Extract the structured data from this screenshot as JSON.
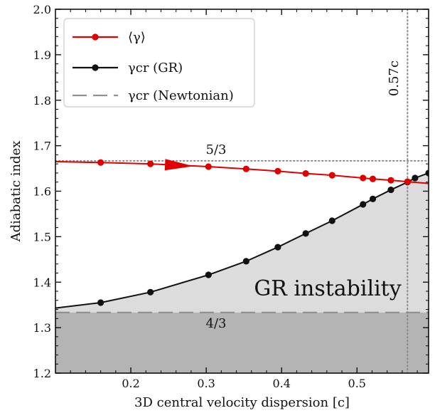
{
  "chart_data": {
    "type": "line",
    "xlabel": "3D central velocity dispersion [c]",
    "ylabel": "Adiabatic index",
    "xlim": [
      0.1,
      0.595
    ],
    "ylim": [
      1.2,
      2.0
    ],
    "xticks": [
      "0.2",
      "0.3",
      "0.4",
      "0.5"
    ],
    "yticks": [
      "1.2",
      "1.3",
      "1.4",
      "1.5",
      "1.6",
      "1.7",
      "1.8",
      "1.9",
      "2.0"
    ],
    "legend_position": "top-left",
    "series": [
      {
        "name": "⟨γ⟩",
        "color": "#e00000",
        "marker": "circle",
        "x": [
          0.1,
          0.16,
          0.226,
          0.303,
          0.353,
          0.395,
          0.432,
          0.467,
          0.508,
          0.521,
          0.545,
          0.567,
          0.595
        ],
        "y": [
          1.665,
          1.663,
          1.66,
          1.654,
          1.649,
          1.644,
          1.639,
          1.635,
          1.629,
          1.627,
          1.624,
          1.621,
          1.617
        ],
        "marker_x": [
          0.16,
          0.226,
          0.303,
          0.353,
          0.395,
          0.432,
          0.467,
          0.508,
          0.521,
          0.545,
          0.567
        ]
      },
      {
        "name": "γ_cr (GR)",
        "color": "#111111",
        "marker": "circle",
        "x": [
          0.1,
          0.16,
          0.226,
          0.303,
          0.353,
          0.395,
          0.432,
          0.467,
          0.508,
          0.521,
          0.545,
          0.567,
          0.577,
          0.595
        ],
        "y": [
          1.343,
          1.355,
          1.378,
          1.416,
          1.446,
          1.477,
          1.507,
          1.535,
          1.571,
          1.583,
          1.603,
          1.62,
          1.629,
          1.64
        ],
        "marker_x": [
          0.16,
          0.226,
          0.303,
          0.353,
          0.395,
          0.432,
          0.467,
          0.508,
          0.521,
          0.545,
          0.567,
          0.577,
          0.595
        ]
      },
      {
        "name": "γ_cr (Newtonian)",
        "color": "#909090",
        "style": "dashed",
        "y": 1.3333
      }
    ],
    "reference_lines": {
      "horizontal": {
        "y": 1.6667,
        "label": "5/3"
      },
      "newtonian_label": "4/3",
      "vertical": {
        "x": 0.567,
        "label": "0.57c"
      }
    },
    "region_label": "GR instability",
    "colors": {
      "light_fill": "#dcdcdc",
      "dark_fill": "#b4b4b4",
      "ref_line": "#8a8a8a"
    }
  },
  "legend": {
    "items": [
      "⟨γ⟩",
      "γcr (GR)",
      "γcr (Newtonian)"
    ]
  }
}
